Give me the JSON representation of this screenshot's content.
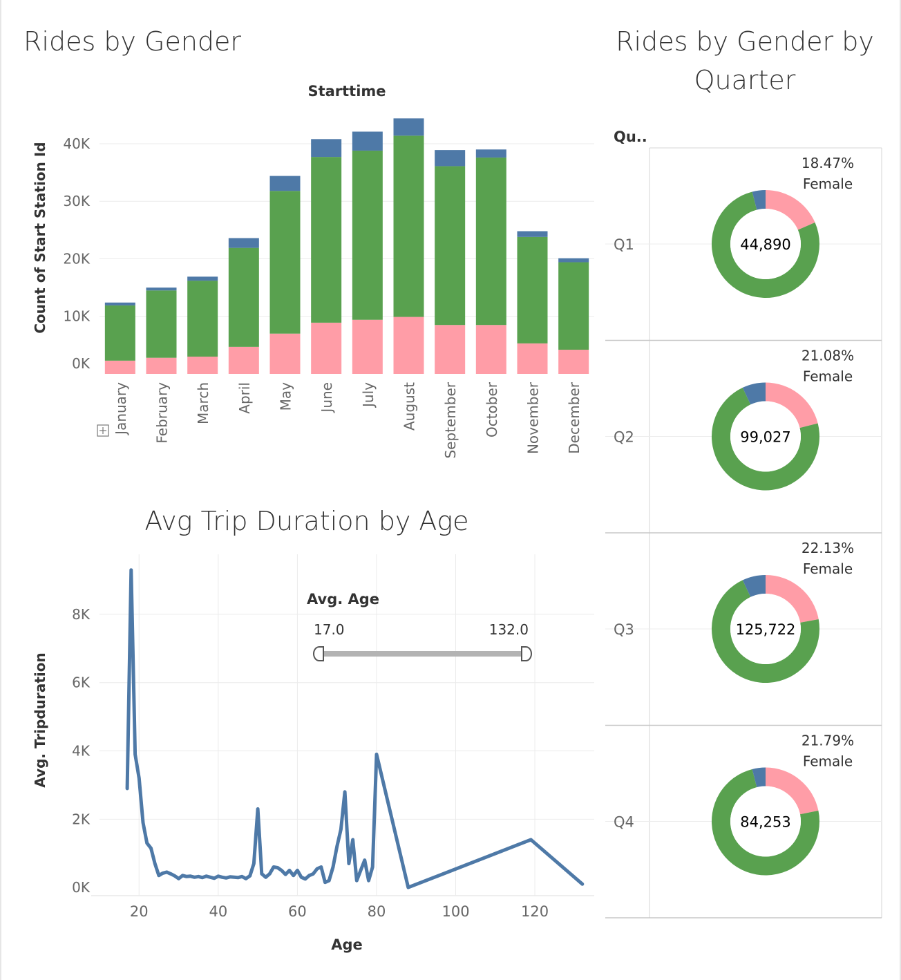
{
  "titles": {
    "rides_by_gender": "Rides by Gender",
    "rides_by_quarter_line1": "Rides by Gender by",
    "rides_by_quarter_line2": "Quarter",
    "trip_duration": "Avg Trip Duration by Age"
  },
  "colors": {
    "female": "#ff9da7",
    "male": "#59a14f",
    "unknown": "#4e79a7",
    "line": "#4e79a7",
    "grid": "#ebebeb",
    "axis_text": "#666666"
  },
  "filter": {
    "label": "Avg. Age",
    "min": "17.0",
    "max": "132.0"
  },
  "quarter_header": "Qu..",
  "chart_data": [
    {
      "type": "bar",
      "stacked": true,
      "header": "Starttime",
      "xlabel": "",
      "ylabel": "Count of Start Station Id",
      "ylim": [
        0,
        46000
      ],
      "yticks": [
        0,
        10000,
        20000,
        30000,
        40000
      ],
      "ytick_labels": [
        "0K",
        "10K",
        "20K",
        "30K",
        "40K"
      ],
      "categories": [
        "January",
        "February",
        "March",
        "April",
        "May",
        "June",
        "July",
        "August",
        "September",
        "October",
        "November",
        "December"
      ],
      "series": [
        {
          "color": "#ff9da7",
          "values": [
            2300,
            2800,
            3000,
            4700,
            7000,
            8900,
            9400,
            9900,
            8500,
            8500,
            5300,
            4200
          ]
        },
        {
          "color": "#59a14f",
          "values": [
            9600,
            11700,
            13200,
            17200,
            24800,
            28800,
            29400,
            31500,
            27600,
            29100,
            18500,
            15200
          ]
        },
        {
          "color": "#4e79a7",
          "values": [
            500,
            500,
            700,
            1700,
            2600,
            3100,
            3300,
            3000,
            2800,
            1400,
            1000,
            700
          ]
        }
      ]
    },
    {
      "type": "pie",
      "donut": true,
      "rows": [
        {
          "quarter": "Q1",
          "total": "44,890",
          "female_pct_label": "18.47%",
          "female_label": "Female",
          "female": 0.1847,
          "male": 0.7753,
          "unknown": 0.04
        },
        {
          "quarter": "Q2",
          "total": "99,027",
          "female_pct_label": "21.08%",
          "female_label": "Female",
          "female": 0.2108,
          "male": 0.7192,
          "unknown": 0.07
        },
        {
          "quarter": "Q3",
          "total": "125,722",
          "female_pct_label": "22.13%",
          "female_label": "Female",
          "female": 0.2213,
          "male": 0.7087,
          "unknown": 0.07
        },
        {
          "quarter": "Q4",
          "total": "84,253",
          "female_pct_label": "21.79%",
          "female_label": "Female",
          "female": 0.2179,
          "male": 0.7421,
          "unknown": 0.04
        }
      ]
    },
    {
      "type": "line",
      "xlabel": "Age",
      "ylabel": "Avg. Tripduration",
      "xlim": [
        10,
        135
      ],
      "ylim": [
        -200,
        9800
      ],
      "xticks": [
        20,
        40,
        60,
        80,
        100,
        120
      ],
      "yticks": [
        0,
        2000,
        4000,
        6000,
        8000
      ],
      "ytick_labels": [
        "0K",
        "2K",
        "4K",
        "6K",
        "8K"
      ],
      "points": [
        [
          17,
          2900
        ],
        [
          18,
          9300
        ],
        [
          19,
          3900
        ],
        [
          20,
          3200
        ],
        [
          21,
          1900
        ],
        [
          22,
          1300
        ],
        [
          23,
          1150
        ],
        [
          24,
          700
        ],
        [
          25,
          350
        ],
        [
          26,
          420
        ],
        [
          27,
          450
        ],
        [
          28,
          400
        ],
        [
          29,
          340
        ],
        [
          30,
          260
        ],
        [
          31,
          350
        ],
        [
          32,
          320
        ],
        [
          33,
          330
        ],
        [
          34,
          300
        ],
        [
          35,
          320
        ],
        [
          36,
          290
        ],
        [
          37,
          330
        ],
        [
          38,
          300
        ],
        [
          39,
          270
        ],
        [
          40,
          330
        ],
        [
          41,
          300
        ],
        [
          42,
          280
        ],
        [
          43,
          310
        ],
        [
          44,
          300
        ],
        [
          45,
          290
        ],
        [
          46,
          320
        ],
        [
          47,
          260
        ],
        [
          48,
          340
        ],
        [
          49,
          700
        ],
        [
          50,
          2300
        ],
        [
          51,
          400
        ],
        [
          52,
          300
        ],
        [
          53,
          400
        ],
        [
          54,
          600
        ],
        [
          55,
          580
        ],
        [
          56,
          500
        ],
        [
          57,
          380
        ],
        [
          58,
          500
        ],
        [
          59,
          350
        ],
        [
          60,
          500
        ],
        [
          61,
          300
        ],
        [
          62,
          250
        ],
        [
          63,
          350
        ],
        [
          64,
          400
        ],
        [
          65,
          550
        ],
        [
          66,
          600
        ],
        [
          67,
          150
        ],
        [
          68,
          200
        ],
        [
          69,
          600
        ],
        [
          70,
          1200
        ],
        [
          71,
          1700
        ],
        [
          72,
          2800
        ],
        [
          73,
          700
        ],
        [
          74,
          1400
        ],
        [
          75,
          200
        ],
        [
          76,
          500
        ],
        [
          77,
          800
        ],
        [
          78,
          200
        ],
        [
          79,
          600
        ],
        [
          80,
          3900
        ],
        [
          88,
          0
        ],
        [
          119,
          1400
        ],
        [
          132,
          100
        ]
      ]
    }
  ]
}
